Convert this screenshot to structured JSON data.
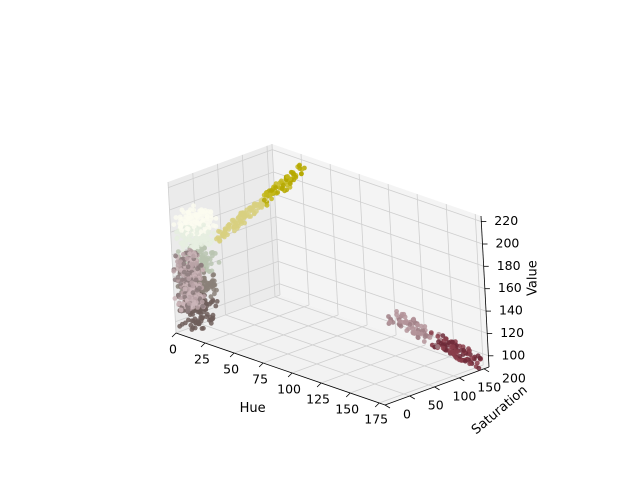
{
  "chart_data": {
    "type": "scatter",
    "projection": "3d",
    "title": "",
    "xlabel": "Hue",
    "ylabel": "Saturation",
    "zlabel": "Value",
    "xlim": [
      0,
      180
    ],
    "ylim": [
      0,
      210
    ],
    "zlim": [
      90,
      225
    ],
    "xticks": [
      0,
      25,
      50,
      75,
      100,
      125,
      150,
      175
    ],
    "yticks": [
      0,
      50,
      100,
      150,
      200
    ],
    "zticks": [
      100,
      120,
      140,
      160,
      180,
      200,
      220
    ],
    "grid": true,
    "point_color": "each point colored by its own HSV value",
    "clusters": [
      {
        "name": "gray-green pillar",
        "hue": [
          2,
          22
        ],
        "saturation": [
          0,
          45
        ],
        "value": [
          96,
          200
        ],
        "colors": [
          "#6e5e5a",
          "#8a8078",
          "#b8c4b0",
          "#e6efe0",
          "#fbfbf0"
        ]
      },
      {
        "name": "pink-gray base",
        "hue": [
          0,
          10
        ],
        "saturation": [
          0,
          40
        ],
        "value": [
          110,
          160
        ],
        "colors": [
          "#b8a2a6",
          "#cbb5b9",
          "#8d7c7e"
        ]
      },
      {
        "name": "yellow streak",
        "hue": [
          20,
          30
        ],
        "saturation": [
          50,
          200
        ],
        "value": [
          175,
          215
        ],
        "colors": [
          "#d8d080",
          "#c4b81c",
          "#b5a800"
        ]
      },
      {
        "name": "red cluster",
        "hue": [
          165,
          180
        ],
        "saturation": [
          40,
          200
        ],
        "value": [
          95,
          160
        ],
        "colors": [
          "#6d2a38",
          "#8a3d4a",
          "#b4949a",
          "#a08086"
        ]
      }
    ]
  }
}
